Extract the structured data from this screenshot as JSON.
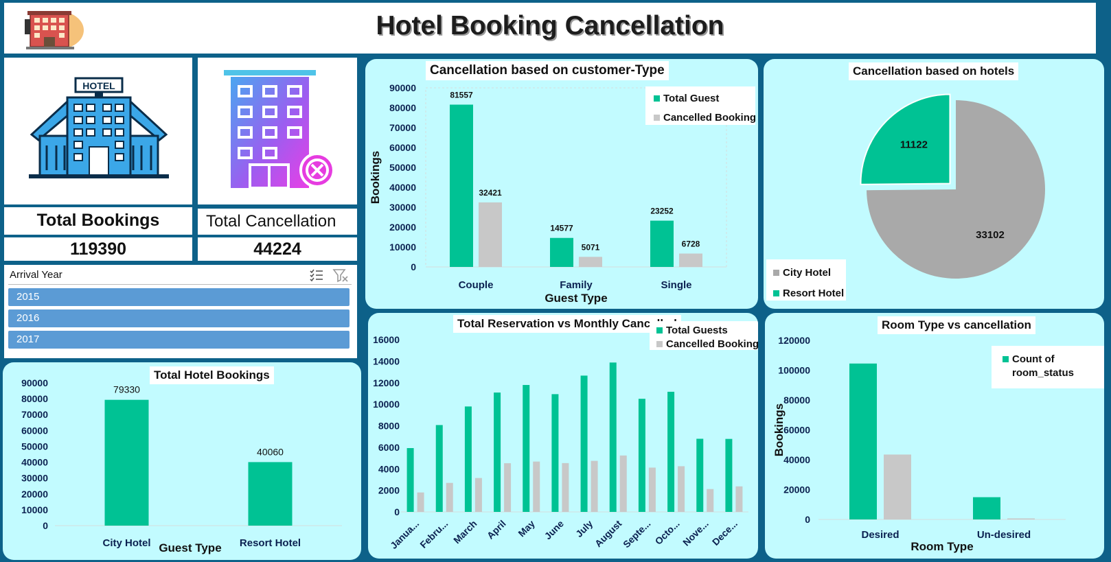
{
  "header": {
    "title": "Hotel Booking Cancellation"
  },
  "kpis": {
    "total_bookings": {
      "label": "Total Bookings",
      "value": "119390"
    },
    "total_cancellation": {
      "label": "Total Cancellation",
      "value": "44224"
    }
  },
  "slicer": {
    "title": "Arrival Year",
    "items": [
      "2015",
      "2016",
      "2017"
    ]
  },
  "colors": {
    "green": "#00c294",
    "grey": "#c8c8c8",
    "pie_grey": "#a9a9a9",
    "panel": "#c2fbff",
    "frame": "#0d6189"
  },
  "chart_data": [
    {
      "id": "customer_type",
      "type": "bar",
      "title": "Cancellation based on customer-Type",
      "categories": [
        "Couple",
        "Family",
        "Single"
      ],
      "series": [
        {
          "name": "Total Guest",
          "values": [
            81557,
            14577,
            23252
          ]
        },
        {
          "name": "Cancelled Booking",
          "values": [
            32421,
            5071,
            6728
          ]
        }
      ],
      "xlabel": "Guest Type",
      "ylabel": "Bookings",
      "ylim": [
        0,
        90000
      ],
      "yticks": [
        "0",
        "10000",
        "20000",
        "30000",
        "40000",
        "50000",
        "60000",
        "70000",
        "80000",
        "90000"
      ],
      "data_labels": true,
      "legend": "top-right"
    },
    {
      "id": "hotels_pie",
      "type": "pie",
      "title": "Cancellation based on hotels",
      "labels": [
        "City Hotel",
        "Resort Hotel"
      ],
      "values": [
        33102,
        11122
      ],
      "legend": "bottom-left"
    },
    {
      "id": "total_hotel_bookings",
      "type": "bar",
      "title": "Total Hotel Bookings",
      "categories": [
        "City Hotel",
        "Resort Hotel"
      ],
      "values": [
        79330,
        40060
      ],
      "xlabel": "Guest Type",
      "ylim": [
        0,
        90000
      ],
      "yticks": [
        "0",
        "10000",
        "20000",
        "30000",
        "40000",
        "50000",
        "60000",
        "70000",
        "80000",
        "90000"
      ],
      "data_labels": true
    },
    {
      "id": "monthly",
      "type": "bar",
      "title": "Total Reservation vs Monthly Cancelled",
      "categories": [
        "Janua...",
        "Febru...",
        "March",
        "April",
        "May",
        "June",
        "July",
        "August",
        "Septe...",
        "Octo...",
        "Nove...",
        "Dece..."
      ],
      "series": [
        {
          "name": "Total Guests",
          "values": [
            5929,
            8068,
            9794,
            11089,
            11791,
            10939,
            12661,
            13877,
            10508,
            11160,
            6794,
            6780
          ]
        },
        {
          "name": "Cancelled Bookings",
          "values": [
            1807,
            2696,
            3149,
            4524,
            4677,
            4535,
            4742,
            5239,
            4116,
            4246,
            2122,
            2371
          ]
        }
      ],
      "ylim": [
        0,
        16000
      ],
      "yticks": [
        "0",
        "2000",
        "4000",
        "6000",
        "8000",
        "10000",
        "12000",
        "14000",
        "16000"
      ],
      "legend": "top-right"
    },
    {
      "id": "room_type",
      "type": "bar",
      "title": "Room Type vs cancellation",
      "categories": [
        "Desired",
        "Un-desired"
      ],
      "series": [
        {
          "name": "Count of room_status",
          "values": [
            104473,
            14917
          ]
        },
        {
          "name": "",
          "values": [
            43500,
            700
          ]
        }
      ],
      "xlabel": "Room Type",
      "ylabel": "Bookings",
      "ylim": [
        0,
        120000
      ],
      "yticks": [
        "0",
        "20000",
        "40000",
        "60000",
        "80000",
        "100000",
        "120000"
      ],
      "legend": "top-right"
    }
  ]
}
